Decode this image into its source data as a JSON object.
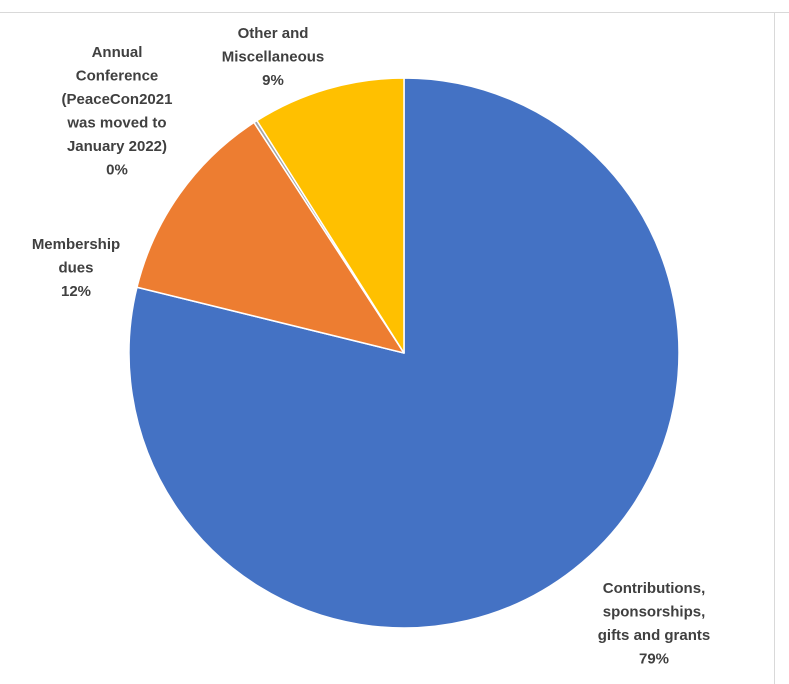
{
  "chart_data": {
    "type": "pie",
    "title": "",
    "start_angle_deg": 0,
    "direction": "clockwise",
    "slices": [
      {
        "label": "Contributions, sponsorships, gifts and grants",
        "label_lines": [
          "Contributions,",
          "sponsorships,",
          "gifts and grants"
        ],
        "percent_label": "79%",
        "value": 79,
        "color": "#4472C4"
      },
      {
        "label": "Membership dues",
        "label_lines": [
          "Membership",
          "dues"
        ],
        "percent_label": "12%",
        "value": 12,
        "color": "#ED7D31"
      },
      {
        "label": "Annual Conference (PeaceCon2021 was moved to January 2022)",
        "label_lines": [
          "Annual",
          "Conference",
          "(PeaceCon2021",
          "was moved to",
          "January 2022)"
        ],
        "percent_label": "0%",
        "value": 0.2,
        "color": "#A5A5A5"
      },
      {
        "label": "Other and Miscellaneous",
        "label_lines": [
          "Other and",
          "Miscellaneous"
        ],
        "percent_label": "9%",
        "value": 9,
        "color": "#FFC000"
      }
    ],
    "legend": "none",
    "data_labels": "outside-end"
  }
}
